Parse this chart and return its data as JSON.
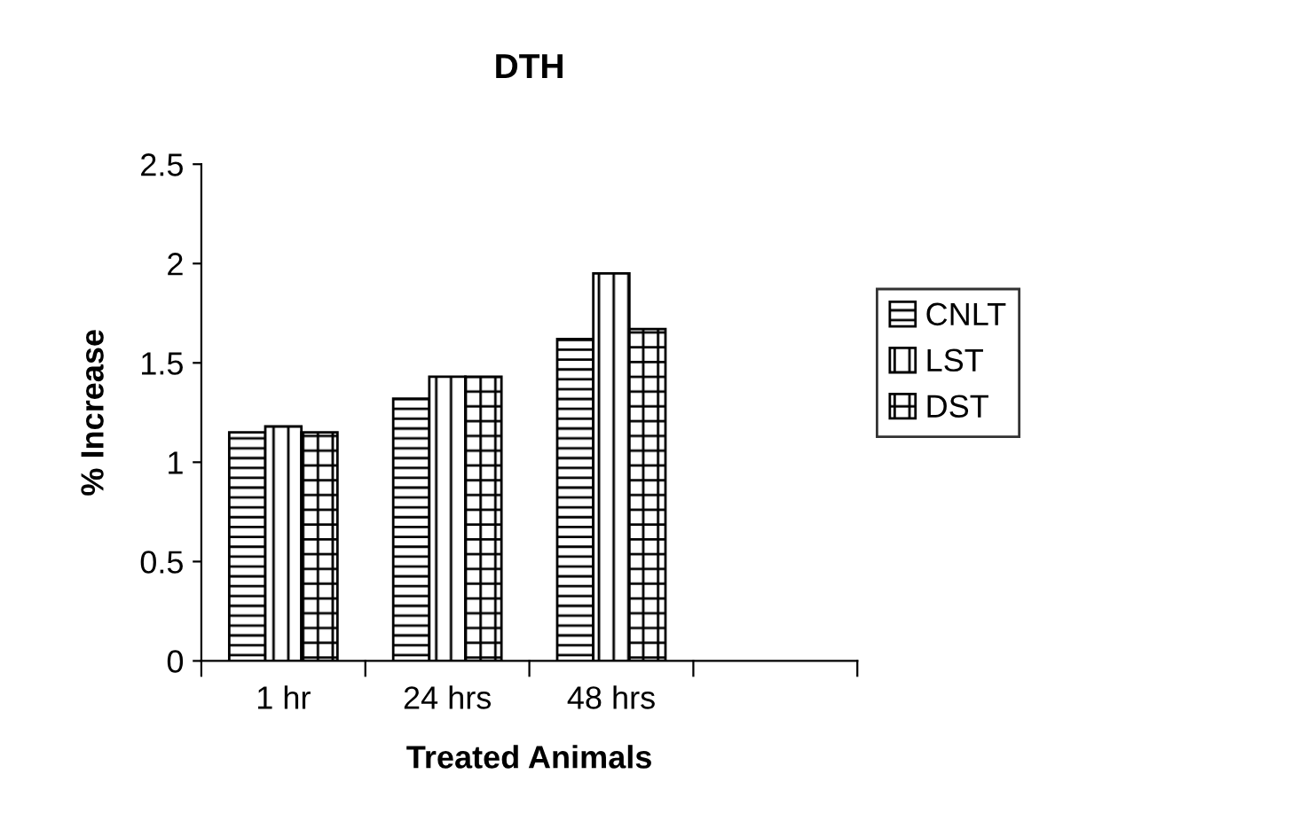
{
  "chart_data": {
    "type": "bar",
    "title": "DTH",
    "xlabel": "Treated Animals",
    "ylabel": "% Increase",
    "categories": [
      "1 hr",
      "24 hrs",
      "48 hrs",
      null
    ],
    "series": [
      {
        "name": "CNLT",
        "color": "#000000",
        "values": [
          1.15,
          1.32,
          1.62,
          null
        ]
      },
      {
        "name": "LST",
        "color": "#000000",
        "values": [
          1.18,
          1.43,
          1.95,
          null
        ]
      },
      {
        "name": "DST",
        "color": "#000000",
        "values": [
          1.15,
          1.43,
          1.67,
          null
        ]
      }
    ],
    "ylim": [
      0,
      2.5
    ],
    "yticks": [
      0,
      0.5,
      1,
      1.5,
      2,
      2.5
    ],
    "grid": false,
    "legend": "right"
  }
}
